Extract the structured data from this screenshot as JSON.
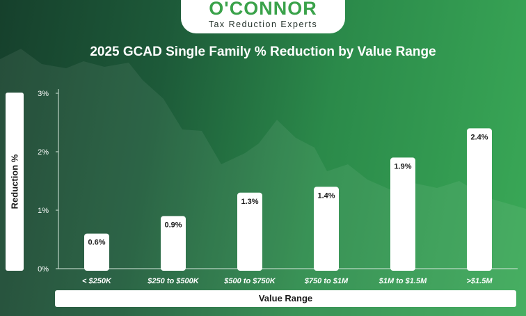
{
  "logo": {
    "name": "O'CONNOR",
    "tagline": "Tax Reduction Experts"
  },
  "colors": {
    "bar": "#ffffff",
    "background_dark": "#16402c",
    "background_light": "#3aa957",
    "logo_green": "#3aa24a",
    "axis": "#d7e8dd"
  },
  "chart_data": {
    "type": "bar",
    "title": "2025 GCAD Single Family % Reduction by Value Range",
    "xlabel": "Value Range",
    "ylabel": "Reduction %",
    "categories": [
      "< $250K",
      "$250 to $500K",
      "$500 to $750K",
      "$750 to $1M",
      "$1M to $1.5M",
      ">$1.5M"
    ],
    "values": [
      0.6,
      0.9,
      1.3,
      1.4,
      1.9,
      2.4
    ],
    "value_labels": [
      "0.6%",
      "0.9%",
      "1.3%",
      "1.4%",
      "1.9%",
      "2.4%"
    ],
    "ylim": [
      0,
      3
    ],
    "yticks": [
      0,
      1,
      2,
      3
    ],
    "ytick_labels": [
      "0%",
      "1%",
      "2%",
      "3%"
    ],
    "grid": false,
    "legend": "none"
  }
}
